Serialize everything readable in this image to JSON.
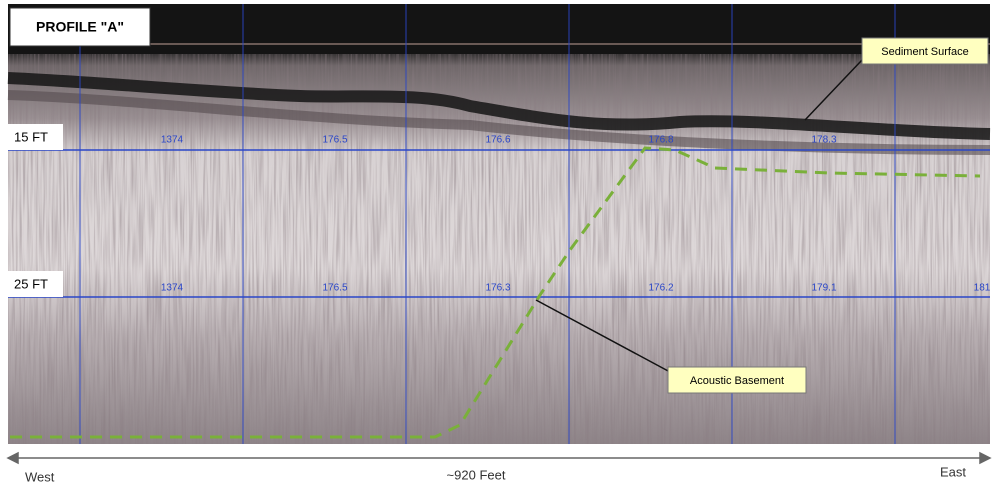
{
  "title": "PROFILE \"A\"",
  "depth_labels": [
    "15 FT",
    "25 FT"
  ],
  "callouts": {
    "sediment": "Sediment Surface",
    "basement": "Acoustic Basement"
  },
  "grid_numbers_15ft": [
    "1374",
    "176.5",
    "176.6",
    "176.8",
    "178.3"
  ],
  "grid_numbers_25ft": [
    "1374",
    "176.5",
    "176.3",
    "176.2",
    "179.1",
    "181"
  ],
  "scale": {
    "west": "West",
    "distance": "~920 Feet",
    "east": "East"
  }
}
